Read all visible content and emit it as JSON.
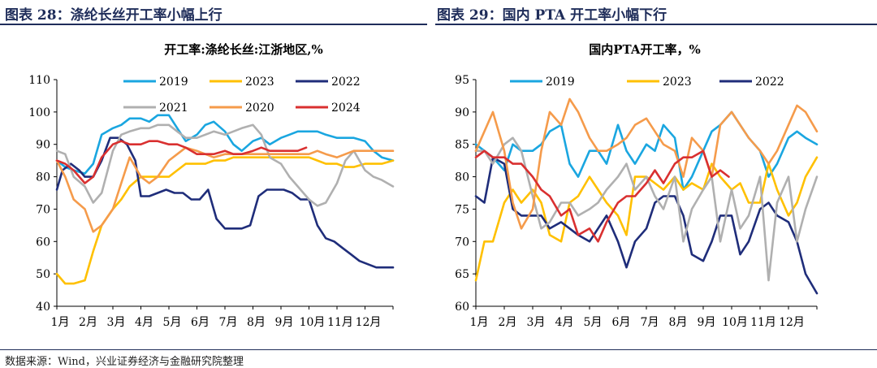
{
  "figures": [
    {
      "heading": "图表 28：涤纶长丝开工率小幅上行"
    },
    {
      "heading": "图表 29：国内 PTA 开工率小幅下行"
    }
  ],
  "source_note": "数据来源：Wind，兴业证券经济与金融研究院整理",
  "chart_data": [
    {
      "type": "line",
      "title": "开工率:涤纶长丝:江浙地区,%",
      "xlabel": "",
      "ylabel": "",
      "ylim": [
        40,
        110
      ],
      "yticks": [
        40,
        50,
        60,
        70,
        80,
        90,
        100,
        110
      ],
      "categories": [
        "1月",
        "2月",
        "3月",
        "4月",
        "5月",
        "6月",
        "7月",
        "8月",
        "9月",
        "10月",
        "11月",
        "12月"
      ],
      "legend_position": "top",
      "series": [
        {
          "name": "2019",
          "color": "#1aa6e0",
          "x": [
            0,
            0.3,
            0.6,
            1,
            1.3,
            1.6,
            2,
            2.3,
            2.6,
            3,
            3.3,
            3.6,
            4,
            4.3,
            4.6,
            5,
            5.3,
            5.6,
            6,
            6.3,
            6.6,
            7,
            7.3,
            7.6,
            8,
            8.3,
            8.6,
            9,
            9.3,
            9.6,
            10,
            10.3,
            10.6,
            11,
            11.3,
            11.6,
            12
          ],
          "values": [
            85,
            83,
            82,
            81,
            84,
            93,
            95,
            96,
            98,
            98,
            97,
            99,
            99,
            95,
            91,
            93,
            96,
            97,
            94,
            90,
            88,
            91,
            92,
            90,
            92,
            93,
            94,
            94,
            94,
            93,
            92,
            92,
            92,
            91,
            88,
            86,
            85
          ]
        },
        {
          "name": "2023",
          "color": "#ffc000",
          "x": [
            0,
            0.3,
            0.6,
            1,
            1.3,
            1.6,
            2,
            2.3,
            2.6,
            3,
            3.3,
            3.6,
            4,
            4.3,
            4.6,
            5,
            5.3,
            5.6,
            6,
            6.3,
            6.6,
            7,
            7.3,
            7.6,
            8,
            8.3,
            8.6,
            9,
            9.3,
            9.6,
            10,
            10.3,
            10.6,
            11,
            11.3,
            11.6,
            12
          ],
          "values": [
            50,
            47,
            47,
            48,
            57,
            65,
            70,
            73,
            77,
            80,
            80,
            80,
            80,
            82,
            84,
            84,
            84,
            85,
            85,
            86,
            86,
            86,
            86,
            86,
            86,
            86,
            86,
            86,
            85,
            84,
            84,
            83,
            83,
            84,
            84,
            84,
            85
          ]
        },
        {
          "name": "2022",
          "color": "#1f2d7a",
          "x": [
            0,
            0.2,
            0.5,
            0.8,
            1,
            1.3,
            1.6,
            1.9,
            2.2,
            2.5,
            2.8,
            3,
            3.3,
            3.6,
            3.9,
            4.2,
            4.5,
            4.8,
            5.1,
            5.4,
            5.7,
            6,
            6.3,
            6.6,
            6.9,
            7.2,
            7.5,
            7.8,
            8.1,
            8.4,
            8.7,
            9,
            9.3,
            9.6,
            9.9,
            10.2,
            10.5,
            10.8,
            11.1,
            11.4,
            11.7,
            12
          ],
          "values": [
            76,
            82,
            84,
            82,
            80,
            80,
            85,
            92,
            92,
            90,
            85,
            74,
            74,
            75,
            76,
            75,
            75,
            73,
            73,
            76,
            67,
            64,
            64,
            64,
            65,
            74,
            76,
            76,
            76,
            75,
            73,
            73,
            65,
            61,
            60,
            58,
            56,
            54,
            53,
            52,
            52,
            52
          ]
        },
        {
          "name": "2021",
          "color": "#b0b0b0",
          "x": [
            0,
            0.3,
            0.6,
            1,
            1.3,
            1.6,
            2,
            2.3,
            2.6,
            3,
            3.3,
            3.6,
            4,
            4.3,
            4.6,
            5,
            5.3,
            5.6,
            6,
            6.3,
            6.6,
            7,
            7.3,
            7.6,
            8,
            8.3,
            8.6,
            9,
            9.3,
            9.6,
            10,
            10.3,
            10.6,
            11,
            11.3,
            11.6,
            12
          ],
          "values": [
            88,
            87,
            80,
            77,
            72,
            75,
            88,
            93,
            94,
            95,
            95,
            96,
            96,
            94,
            92,
            92,
            93,
            94,
            93,
            94,
            95,
            96,
            93,
            86,
            84,
            80,
            77,
            73,
            71,
            72,
            78,
            85,
            88,
            82,
            80,
            79,
            77
          ]
        },
        {
          "name": "2020",
          "color": "#f59b4b",
          "x": [
            0,
            0.3,
            0.6,
            1,
            1.3,
            1.6,
            2,
            2.3,
            2.6,
            3,
            3.3,
            3.6,
            4,
            4.3,
            4.6,
            5,
            5.3,
            5.6,
            6,
            6.3,
            6.6,
            7,
            7.3,
            7.6,
            8,
            8.3,
            8.6,
            9,
            9.3,
            9.6,
            10,
            10.3,
            10.6,
            11,
            11.3,
            11.6,
            12
          ],
          "values": [
            85,
            80,
            73,
            70,
            63,
            65,
            70,
            78,
            86,
            80,
            78,
            80,
            85,
            87,
            89,
            88,
            87,
            86,
            87,
            87,
            87,
            87,
            87,
            87,
            87,
            87,
            87,
            87,
            88,
            87,
            86,
            87,
            88,
            88,
            88,
            88,
            88
          ]
        },
        {
          "name": "2024",
          "color": "#d93030",
          "x": [
            0,
            0.3,
            0.6,
            1,
            1.3,
            1.6,
            2,
            2.3,
            2.6,
            3,
            3.3,
            3.6,
            4,
            4.3,
            4.6,
            5,
            5.3,
            5.6,
            6,
            6.3,
            6.6,
            7,
            7.3,
            7.6,
            8,
            8.3,
            8.6,
            8.9
          ],
          "values": [
            85,
            84,
            82,
            78,
            80,
            86,
            90,
            91,
            90,
            90,
            91,
            91,
            90,
            90,
            89,
            87,
            87,
            87,
            88,
            87,
            87,
            88,
            89,
            88,
            88,
            88,
            88,
            89
          ]
        }
      ]
    },
    {
      "type": "line",
      "title": "国内PTA开工率，%",
      "xlabel": "",
      "ylabel": "",
      "ylim": [
        60,
        95
      ],
      "yticks": [
        60,
        65,
        70,
        75,
        80,
        85,
        90,
        95
      ],
      "categories": [
        "1月",
        "2月",
        "3月",
        "4月",
        "5月",
        "6月",
        "7月",
        "8月",
        "9月",
        "10月",
        "11月",
        "12月"
      ],
      "legend_position": "top",
      "series": [
        {
          "name": "2019",
          "color": "#1aa6e0",
          "x": [
            0,
            0.3,
            0.6,
            1,
            1.3,
            1.6,
            2,
            2.3,
            2.6,
            3,
            3.3,
            3.6,
            4,
            4.3,
            4.6,
            5,
            5.3,
            5.6,
            6,
            6.3,
            6.6,
            7,
            7.3,
            7.6,
            8,
            8.3,
            8.6,
            9,
            9.3,
            9.6,
            10,
            10.3,
            10.6,
            11,
            11.3,
            11.6,
            12
          ],
          "values": [
            85,
            84,
            83,
            81,
            85,
            84,
            84,
            85,
            87,
            88,
            82,
            80,
            84,
            84,
            82,
            88,
            84,
            82,
            85,
            84,
            88,
            86,
            78,
            80,
            84,
            87,
            88,
            90,
            88,
            86,
            84,
            80,
            82,
            86,
            87,
            86,
            85
          ]
        },
        {
          "name": "2023",
          "color": "#ffc000",
          "x": [
            0,
            0.3,
            0.6,
            1,
            1.3,
            1.6,
            2,
            2.3,
            2.6,
            3,
            3.3,
            3.6,
            4,
            4.3,
            4.6,
            5,
            5.3,
            5.6,
            6,
            6.3,
            6.6,
            7,
            7.3,
            7.6,
            8,
            8.3,
            8.6,
            9,
            9.3,
            9.6,
            10,
            10.3,
            10.6,
            11,
            11.3,
            11.6,
            12
          ],
          "values": [
            64,
            70,
            70,
            76,
            78,
            76,
            78,
            76,
            71,
            70,
            76,
            77,
            80,
            78,
            76,
            74,
            71,
            80,
            80,
            79,
            78,
            80,
            78,
            79,
            78,
            82,
            80,
            78,
            79,
            76,
            76,
            82,
            78,
            74,
            76,
            80,
            83
          ]
        },
        {
          "name": "2022",
          "color": "#1f2d7a",
          "x": [
            0,
            0.3,
            0.6,
            1,
            1.3,
            1.6,
            2,
            2.3,
            2.6,
            3,
            3.3,
            3.6,
            4,
            4.3,
            4.6,
            5,
            5.3,
            5.6,
            6,
            6.3,
            6.6,
            7,
            7.3,
            7.6,
            8,
            8.3,
            8.6,
            9,
            9.3,
            9.6,
            10,
            10.3,
            10.6,
            11,
            11.3,
            11.6,
            12
          ],
          "values": [
            77,
            76,
            83,
            82,
            75,
            74,
            74,
            74,
            72,
            73,
            72,
            71,
            70,
            72,
            74,
            70,
            66,
            70,
            72,
            76,
            77,
            77,
            74,
            68,
            67,
            70,
            74,
            74,
            68,
            70,
            75,
            76,
            74,
            73,
            70,
            65,
            62
          ]
        },
        {
          "name": "2021",
          "color": "#b0b0b0",
          "x": [
            0,
            0.3,
            0.6,
            1,
            1.3,
            1.6,
            2,
            2.3,
            2.6,
            3,
            3.3,
            3.6,
            4,
            4.3,
            4.6,
            5,
            5.3,
            5.6,
            6,
            6.3,
            6.6,
            7,
            7.3,
            7.6,
            8,
            8.3,
            8.6,
            9,
            9.3,
            9.6,
            10,
            10.3,
            10.6,
            11,
            11.3,
            11.6,
            12
          ],
          "values": [
            84,
            84,
            82,
            85,
            86,
            84,
            77,
            72,
            73,
            76,
            76,
            74,
            75,
            76,
            78,
            80,
            82,
            78,
            80,
            77,
            75,
            80,
            70,
            75,
            78,
            80,
            70,
            78,
            72,
            74,
            80,
            64,
            76,
            80,
            70,
            75,
            80
          ]
        },
        {
          "name": "2020",
          "color": "#f59b4b",
          "x": [
            0,
            0.3,
            0.6,
            1,
            1.3,
            1.6,
            2,
            2.3,
            2.6,
            3,
            3.3,
            3.6,
            4,
            4.3,
            4.6,
            5,
            5.3,
            5.6,
            6,
            6.3,
            6.6,
            7,
            7.3,
            7.6,
            8,
            8.3,
            8.6,
            9,
            9.3,
            9.6,
            10,
            10.3,
            10.6,
            11,
            11.3,
            11.6,
            12
          ],
          "values": [
            84,
            87,
            90,
            84,
            76,
            72,
            75,
            84,
            90,
            88,
            92,
            90,
            86,
            84,
            84,
            85,
            86,
            88,
            89,
            87,
            85,
            84,
            80,
            86,
            84,
            80,
            88,
            90,
            88,
            86,
            84,
            82,
            84,
            88,
            91,
            90,
            87
          ]
        },
        {
          "name": "2024",
          "color": "#d93030",
          "x": [
            0,
            0.3,
            0.6,
            1,
            1.3,
            1.6,
            2,
            2.3,
            2.6,
            3,
            3.3,
            3.6,
            4,
            4.3,
            4.6,
            5,
            5.3,
            5.6,
            6,
            6.3,
            6.6,
            7,
            7.3,
            7.6,
            8,
            8.3,
            8.6,
            8.9
          ],
          "values": [
            83,
            84,
            83,
            83,
            82,
            82,
            80,
            78,
            77,
            74,
            75,
            71,
            72,
            70,
            73,
            76,
            77,
            77,
            79,
            81,
            79,
            82,
            83,
            83,
            84,
            80,
            81,
            80
          ]
        }
      ]
    }
  ]
}
